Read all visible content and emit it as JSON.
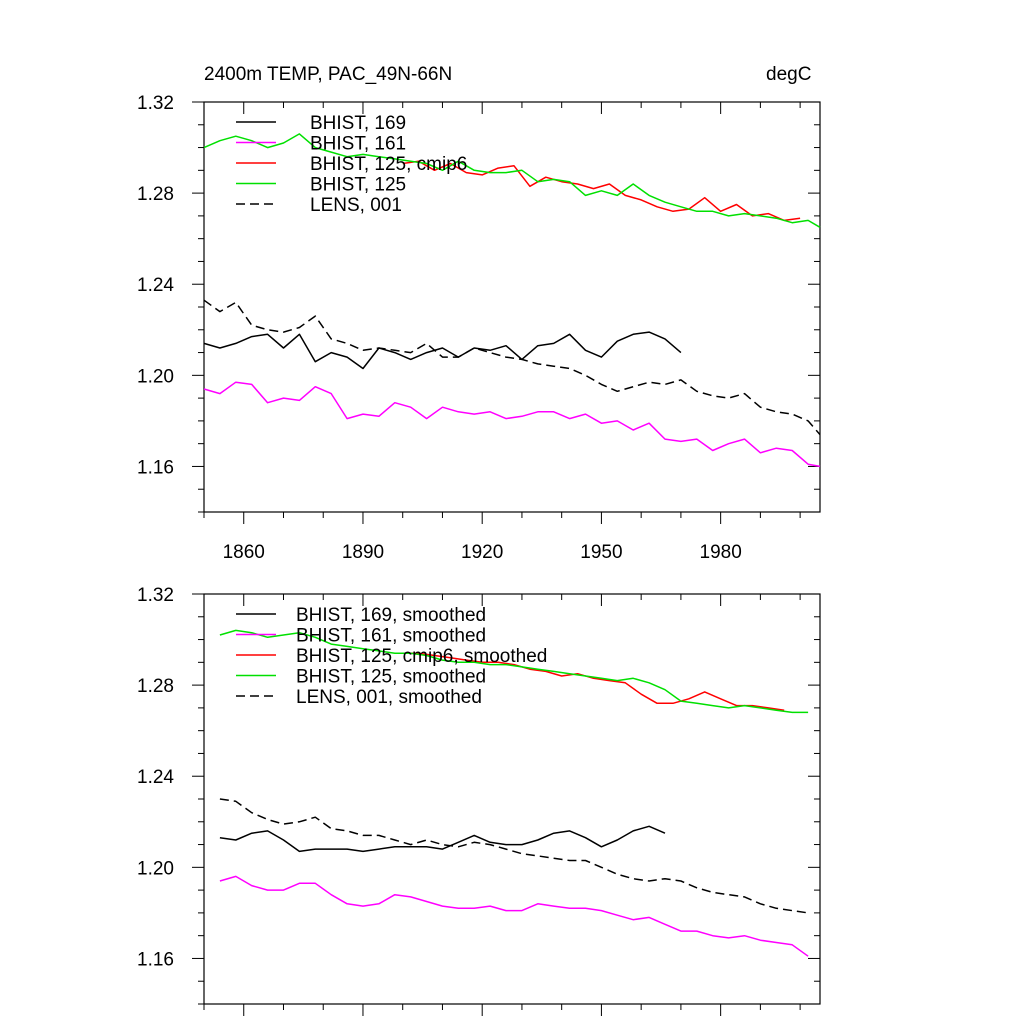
{
  "header": {
    "title": "2400m TEMP, PAC_49N-66N",
    "units": "degC"
  },
  "colors": {
    "bhist169": "#000000",
    "bhist161": "#ff00ff",
    "bhist125cmip6": "#ff0000",
    "bhist125": "#00e000",
    "lens001": "#000000"
  },
  "chart_data": [
    {
      "type": "line",
      "title": "2400m TEMP, PAC_49N-66N",
      "units_label": "degC",
      "xlim": [
        1850,
        2005
      ],
      "ylim": [
        1.14,
        1.32
      ],
      "x_ticks": [
        "1860",
        "1890",
        "1920",
        "1950",
        "1980"
      ],
      "y_ticks": [
        "1.32",
        "1.28",
        "1.24",
        "1.20",
        "1.16"
      ],
      "show_x_tick_labels": true,
      "grid": false,
      "legend_position": "top-left",
      "series": [
        {
          "name": "BHIST, 169",
          "color": "#000000",
          "dash": "solid",
          "x": [
            1850,
            1854,
            1858,
            1862,
            1866,
            1870,
            1874,
            1878,
            1882,
            1886,
            1890,
            1894,
            1898,
            1902,
            1906,
            1910,
            1914,
            1918,
            1922,
            1926,
            1930,
            1934,
            1938,
            1942,
            1946,
            1950,
            1954,
            1958,
            1962,
            1966,
            1970
          ],
          "y": [
            1.214,
            1.212,
            1.214,
            1.217,
            1.218,
            1.212,
            1.218,
            1.206,
            1.21,
            1.208,
            1.203,
            1.212,
            1.21,
            1.207,
            1.21,
            1.212,
            1.208,
            1.212,
            1.211,
            1.213,
            1.207,
            1.213,
            1.214,
            1.218,
            1.211,
            1.208,
            1.215,
            1.218,
            1.219,
            1.216,
            1.21
          ]
        },
        {
          "name": "BHIST, 161",
          "color": "#ff00ff",
          "dash": "solid",
          "x": [
            1850,
            1854,
            1858,
            1862,
            1866,
            1870,
            1874,
            1878,
            1882,
            1886,
            1890,
            1894,
            1898,
            1902,
            1906,
            1910,
            1914,
            1918,
            1922,
            1926,
            1930,
            1934,
            1938,
            1942,
            1946,
            1950,
            1954,
            1958,
            1962,
            1966,
            1970,
            1974,
            1978,
            1982,
            1986,
            1990,
            1994,
            1998,
            2002,
            2005
          ],
          "y": [
            1.194,
            1.192,
            1.197,
            1.196,
            1.188,
            1.19,
            1.189,
            1.195,
            1.192,
            1.181,
            1.183,
            1.182,
            1.188,
            1.186,
            1.181,
            1.186,
            1.184,
            1.183,
            1.184,
            1.181,
            1.182,
            1.184,
            1.184,
            1.181,
            1.183,
            1.179,
            1.18,
            1.176,
            1.179,
            1.172,
            1.171,
            1.172,
            1.167,
            1.17,
            1.172,
            1.166,
            1.168,
            1.167,
            1.161,
            1.16
          ]
        },
        {
          "name": "BHIST, 125, cmip6",
          "color": "#ff0000",
          "dash": "solid",
          "x": [
            1900,
            1904,
            1908,
            1912,
            1916,
            1920,
            1924,
            1928,
            1932,
            1936,
            1940,
            1944,
            1948,
            1952,
            1956,
            1960,
            1964,
            1968,
            1972,
            1976,
            1980,
            1984,
            1988,
            1992,
            1996,
            2000
          ],
          "y": [
            1.293,
            1.294,
            1.29,
            1.293,
            1.289,
            1.288,
            1.291,
            1.292,
            1.283,
            1.287,
            1.285,
            1.284,
            1.282,
            1.284,
            1.279,
            1.277,
            1.274,
            1.272,
            1.273,
            1.278,
            1.272,
            1.275,
            1.27,
            1.271,
            1.268,
            1.269
          ]
        },
        {
          "name": "BHIST, 125",
          "color": "#00e000",
          "dash": "solid",
          "x": [
            1850,
            1854,
            1858,
            1862,
            1866,
            1870,
            1874,
            1878,
            1882,
            1886,
            1890,
            1894,
            1898,
            1902,
            1906,
            1910,
            1914,
            1918,
            1922,
            1926,
            1930,
            1934,
            1938,
            1942,
            1946,
            1950,
            1954,
            1958,
            1962,
            1966,
            1970,
            1974,
            1978,
            1982,
            1986,
            1990,
            1994,
            1998,
            2002,
            2005
          ],
          "y": [
            1.3,
            1.303,
            1.305,
            1.303,
            1.3,
            1.302,
            1.306,
            1.3,
            1.298,
            1.296,
            1.297,
            1.296,
            1.295,
            1.294,
            1.293,
            1.29,
            1.294,
            1.29,
            1.289,
            1.289,
            1.29,
            1.285,
            1.286,
            1.285,
            1.279,
            1.281,
            1.279,
            1.284,
            1.279,
            1.276,
            1.274,
            1.272,
            1.272,
            1.27,
            1.271,
            1.27,
            1.269,
            1.267,
            1.268,
            1.265
          ]
        },
        {
          "name": "LENS, 001",
          "color": "#000000",
          "dash": "dashed",
          "x": [
            1850,
            1854,
            1858,
            1862,
            1866,
            1870,
            1874,
            1878,
            1882,
            1886,
            1890,
            1894,
            1898,
            1902,
            1906,
            1910,
            1914,
            1918,
            1922,
            1926,
            1930,
            1934,
            1938,
            1942,
            1946,
            1950,
            1954,
            1958,
            1962,
            1966,
            1970,
            1974,
            1978,
            1982,
            1986,
            1990,
            1994,
            1998,
            2002,
            2005
          ],
          "y": [
            1.233,
            1.228,
            1.232,
            1.222,
            1.22,
            1.219,
            1.221,
            1.226,
            1.216,
            1.214,
            1.211,
            1.212,
            1.211,
            1.21,
            1.214,
            1.208,
            1.208,
            1.212,
            1.21,
            1.208,
            1.207,
            1.205,
            1.204,
            1.203,
            1.2,
            1.196,
            1.193,
            1.195,
            1.197,
            1.196,
            1.198,
            1.193,
            1.191,
            1.19,
            1.192,
            1.186,
            1.184,
            1.183,
            1.18,
            1.174
          ]
        }
      ]
    },
    {
      "type": "line",
      "xlim": [
        1850,
        2005
      ],
      "ylim": [
        1.14,
        1.32
      ],
      "x_ticks": [
        "1860",
        "1890",
        "1920",
        "1950",
        "1980"
      ],
      "y_ticks": [
        "1.32",
        "1.28",
        "1.24",
        "1.20",
        "1.16"
      ],
      "show_x_tick_labels": false,
      "grid": false,
      "legend_position": "top-left",
      "series": [
        {
          "name": "BHIST, 169, smoothed",
          "color": "#000000",
          "dash": "solid",
          "x": [
            1854,
            1858,
            1862,
            1866,
            1870,
            1874,
            1878,
            1882,
            1886,
            1890,
            1894,
            1898,
            1902,
            1906,
            1910,
            1914,
            1918,
            1922,
            1926,
            1930,
            1934,
            1938,
            1942,
            1946,
            1950,
            1954,
            1958,
            1962,
            1966
          ],
          "y": [
            1.213,
            1.212,
            1.215,
            1.216,
            1.212,
            1.207,
            1.208,
            1.208,
            1.208,
            1.207,
            1.208,
            1.209,
            1.209,
            1.209,
            1.208,
            1.211,
            1.214,
            1.211,
            1.21,
            1.21,
            1.212,
            1.215,
            1.216,
            1.213,
            1.209,
            1.212,
            1.216,
            1.218,
            1.215
          ]
        },
        {
          "name": "BHIST, 161, smoothed",
          "color": "#ff00ff",
          "dash": "solid",
          "x": [
            1854,
            1858,
            1862,
            1866,
            1870,
            1874,
            1878,
            1882,
            1886,
            1890,
            1894,
            1898,
            1902,
            1906,
            1910,
            1914,
            1918,
            1922,
            1926,
            1930,
            1934,
            1938,
            1942,
            1946,
            1950,
            1954,
            1958,
            1962,
            1966,
            1970,
            1974,
            1978,
            1982,
            1986,
            1990,
            1994,
            1998,
            2002
          ],
          "y": [
            1.194,
            1.196,
            1.192,
            1.19,
            1.19,
            1.193,
            1.193,
            1.188,
            1.184,
            1.183,
            1.184,
            1.188,
            1.187,
            1.185,
            1.183,
            1.182,
            1.182,
            1.183,
            1.181,
            1.181,
            1.184,
            1.183,
            1.182,
            1.182,
            1.181,
            1.179,
            1.177,
            1.178,
            1.175,
            1.172,
            1.172,
            1.17,
            1.169,
            1.17,
            1.168,
            1.167,
            1.166,
            1.161
          ]
        },
        {
          "name": "BHIST, 125, cmip6, smoothed",
          "color": "#ff0000",
          "dash": "solid",
          "x": [
            1900,
            1904,
            1908,
            1912,
            1916,
            1920,
            1924,
            1928,
            1932,
            1936,
            1940,
            1944,
            1948,
            1952,
            1956,
            1960,
            1964,
            1968,
            1972,
            1976,
            1980,
            1984,
            1988,
            1992,
            1996
          ],
          "y": [
            1.294,
            1.294,
            1.293,
            1.292,
            1.291,
            1.29,
            1.29,
            1.289,
            1.287,
            1.286,
            1.284,
            1.285,
            1.283,
            1.282,
            1.281,
            1.276,
            1.272,
            1.272,
            1.274,
            1.277,
            1.274,
            1.271,
            1.271,
            1.27,
            1.269
          ]
        },
        {
          "name": "BHIST, 125, smoothed",
          "color": "#00e000",
          "dash": "solid",
          "x": [
            1854,
            1858,
            1862,
            1866,
            1870,
            1874,
            1878,
            1882,
            1886,
            1890,
            1894,
            1898,
            1902,
            1906,
            1910,
            1914,
            1918,
            1922,
            1926,
            1930,
            1934,
            1938,
            1942,
            1946,
            1950,
            1954,
            1958,
            1962,
            1966,
            1970,
            1974,
            1978,
            1982,
            1986,
            1990,
            1994,
            1998,
            2002
          ],
          "y": [
            1.302,
            1.304,
            1.303,
            1.301,
            1.302,
            1.303,
            1.301,
            1.298,
            1.297,
            1.296,
            1.295,
            1.294,
            1.294,
            1.293,
            1.291,
            1.29,
            1.29,
            1.289,
            1.289,
            1.288,
            1.287,
            1.286,
            1.285,
            1.284,
            1.283,
            1.282,
            1.283,
            1.281,
            1.278,
            1.273,
            1.272,
            1.271,
            1.27,
            1.271,
            1.27,
            1.269,
            1.268,
            1.268
          ]
        },
        {
          "name": "LENS, 001, smoothed",
          "color": "#000000",
          "dash": "dashed",
          "x": [
            1854,
            1858,
            1862,
            1866,
            1870,
            1874,
            1878,
            1882,
            1886,
            1890,
            1894,
            1898,
            1902,
            1906,
            1910,
            1914,
            1918,
            1922,
            1926,
            1930,
            1934,
            1938,
            1942,
            1946,
            1950,
            1954,
            1958,
            1962,
            1966,
            1970,
            1974,
            1978,
            1982,
            1986,
            1990,
            1994,
            1998,
            2002
          ],
          "y": [
            1.23,
            1.229,
            1.224,
            1.221,
            1.219,
            1.22,
            1.222,
            1.217,
            1.216,
            1.214,
            1.214,
            1.212,
            1.21,
            1.212,
            1.21,
            1.209,
            1.211,
            1.21,
            1.208,
            1.206,
            1.205,
            1.204,
            1.203,
            1.203,
            1.2,
            1.197,
            1.195,
            1.194,
            1.195,
            1.194,
            1.191,
            1.189,
            1.188,
            1.187,
            1.184,
            1.182,
            1.181,
            1.18
          ]
        }
      ]
    }
  ]
}
